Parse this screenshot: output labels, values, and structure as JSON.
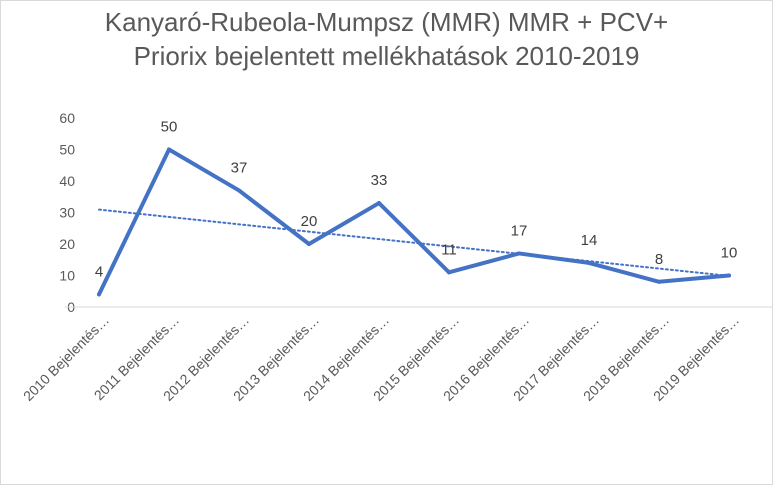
{
  "chart_data": {
    "type": "line",
    "title_line1": "Kanyaró-Rubeola-Mumpsz (MMR) MMR + PCV+",
    "title_line2": "Priorix bejelentett mellékhatások 2010-2019",
    "categories": [
      "2010 Bejelentés…",
      "2011 Bejelentés…",
      "2012 Bejelentés…",
      "2013 Bejelentés…",
      "2014 Bejelentés…",
      "2015 Bejelentés…",
      "2016 Bejelentés…",
      "2017 Bejelentés…",
      "2018 Bejelentés…",
      "2019 Bejelentés…"
    ],
    "series": [
      {
        "values": [
          4,
          50,
          37,
          20,
          33,
          11,
          17,
          14,
          8,
          10
        ],
        "color": "#4472c4"
      }
    ],
    "trendline": {
      "type": "linear",
      "style": "dotted",
      "color": "#4472c4"
    },
    "data_labels": true,
    "ylim": [
      0,
      60
    ],
    "yticks": [
      0,
      10,
      20,
      30,
      40,
      50,
      60
    ],
    "grid": false,
    "legend": "none"
  }
}
